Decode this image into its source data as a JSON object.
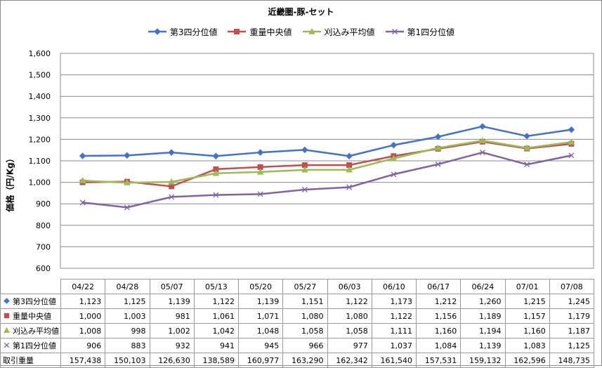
{
  "chart_data": {
    "type": "line",
    "title": "近畿圏-豚-セット",
    "ylabel": "価格（円/Kg）",
    "xlabel": "",
    "ylim": [
      600,
      1600
    ],
    "yticks": [
      "600",
      "700",
      "800",
      "900",
      "1,000",
      "1,100",
      "1,200",
      "1,300",
      "1,400",
      "1,500",
      "1,600"
    ],
    "grid": true,
    "legend_position": "top",
    "categories": [
      "04/22",
      "04/28",
      "05/07",
      "05/13",
      "05/20",
      "05/27",
      "06/03",
      "06/10",
      "06/17",
      "06/24",
      "07/01",
      "07/08"
    ],
    "series": [
      {
        "name": "第3四分位値",
        "color": "#4472C4",
        "marker": "diamond",
        "values": [
          1123,
          1125,
          1139,
          1122,
          1139,
          1151,
          1122,
          1173,
          1212,
          1260,
          1215,
          1245
        ]
      },
      {
        "name": "重量中央値",
        "color": "#C0504D",
        "marker": "square",
        "values": [
          1000,
          1003,
          981,
          1061,
          1071,
          1080,
          1080,
          1122,
          1156,
          1189,
          1157,
          1179
        ]
      },
      {
        "name": "刈込み平均値",
        "color": "#9BBB59",
        "marker": "triangle",
        "values": [
          1008,
          998,
          1002,
          1042,
          1048,
          1058,
          1058,
          1111,
          1160,
          1194,
          1160,
          1187
        ]
      },
      {
        "name": "第1四分位値",
        "color": "#8064A2",
        "marker": "x",
        "values": [
          906,
          883,
          932,
          941,
          945,
          966,
          977,
          1037,
          1084,
          1139,
          1083,
          1125
        ]
      }
    ]
  },
  "table": {
    "rows": [
      {
        "label": "第3四分位値",
        "marker": "diamond",
        "color": "#4472C4",
        "cells": [
          "1,123",
          "1,125",
          "1,139",
          "1,122",
          "1,139",
          "1,151",
          "1,122",
          "1,173",
          "1,212",
          "1,260",
          "1,215",
          "1,245"
        ]
      },
      {
        "label": "重量中央値",
        "marker": "square",
        "color": "#C0504D",
        "cells": [
          "1,000",
          "1,003",
          "981",
          "1,061",
          "1,071",
          "1,080",
          "1,080",
          "1,122",
          "1,156",
          "1,189",
          "1,157",
          "1,179"
        ]
      },
      {
        "label": "刈込み平均値",
        "marker": "triangle",
        "color": "#9BBB59",
        "cells": [
          "1,008",
          "998",
          "1,002",
          "1,042",
          "1,048",
          "1,058",
          "1,058",
          "1,111",
          "1,160",
          "1,194",
          "1,160",
          "1,187"
        ]
      },
      {
        "label": "第1四分位値",
        "marker": "x",
        "color": "#8064A2",
        "cells": [
          "906",
          "883",
          "932",
          "941",
          "945",
          "966",
          "977",
          "1,037",
          "1,084",
          "1,139",
          "1,083",
          "1,125"
        ]
      },
      {
        "label": "取引重量",
        "marker": "",
        "color": "",
        "cells": [
          "157,438",
          "150,103",
          "126,630",
          "138,589",
          "160,977",
          "163,290",
          "162,342",
          "161,540",
          "157,531",
          "159,132",
          "162,596",
          "148,735"
        ]
      }
    ]
  }
}
